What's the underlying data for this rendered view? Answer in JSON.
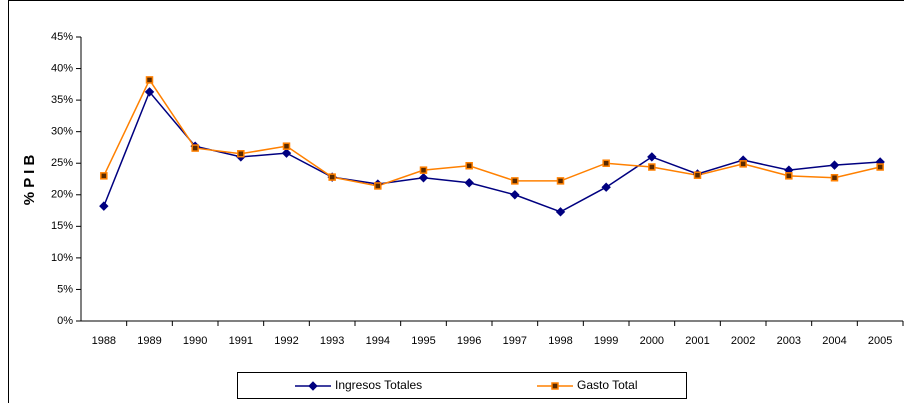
{
  "chart_data": {
    "type": "line",
    "y_label": "% P I B",
    "categories": [
      "1988",
      "1989",
      "1990",
      "1991",
      "1992",
      "1993",
      "1994",
      "1995",
      "1996",
      "1997",
      "1998",
      "1999",
      "2000",
      "2001",
      "2002",
      "2003",
      "2004",
      "2005"
    ],
    "series": [
      {
        "name": "Ingresos Totales",
        "color": "#000080",
        "marker": "diamond",
        "values": [
          18.2,
          36.3,
          27.7,
          26.0,
          26.6,
          22.8,
          21.7,
          22.7,
          21.9,
          20.0,
          17.3,
          21.2,
          26.0,
          23.3,
          25.5,
          23.9,
          24.7,
          25.2
        ]
      },
      {
        "name": "Gasto Total",
        "color": "#ff8000",
        "marker": "square",
        "values": [
          23.0,
          38.2,
          27.4,
          26.5,
          27.7,
          22.8,
          21.4,
          23.9,
          24.6,
          22.2,
          22.2,
          25.0,
          24.4,
          23.1,
          24.9,
          23.0,
          22.7,
          24.4
        ]
      }
    ],
    "ylim": [
      0,
      45
    ],
    "yticks": [
      {
        "value": 0,
        "label": "0%"
      },
      {
        "value": 5,
        "label": "5%"
      },
      {
        "value": 10,
        "label": "10%"
      },
      {
        "value": 15,
        "label": "15%"
      },
      {
        "value": 20,
        "label": "20%"
      },
      {
        "value": 25,
        "label": "25%"
      },
      {
        "value": 30,
        "label": "30%"
      },
      {
        "value": 35,
        "label": "35%"
      },
      {
        "value": 40,
        "label": "40%"
      },
      {
        "value": 45,
        "label": "45%"
      }
    ],
    "grid": false,
    "legend": "bottom"
  }
}
